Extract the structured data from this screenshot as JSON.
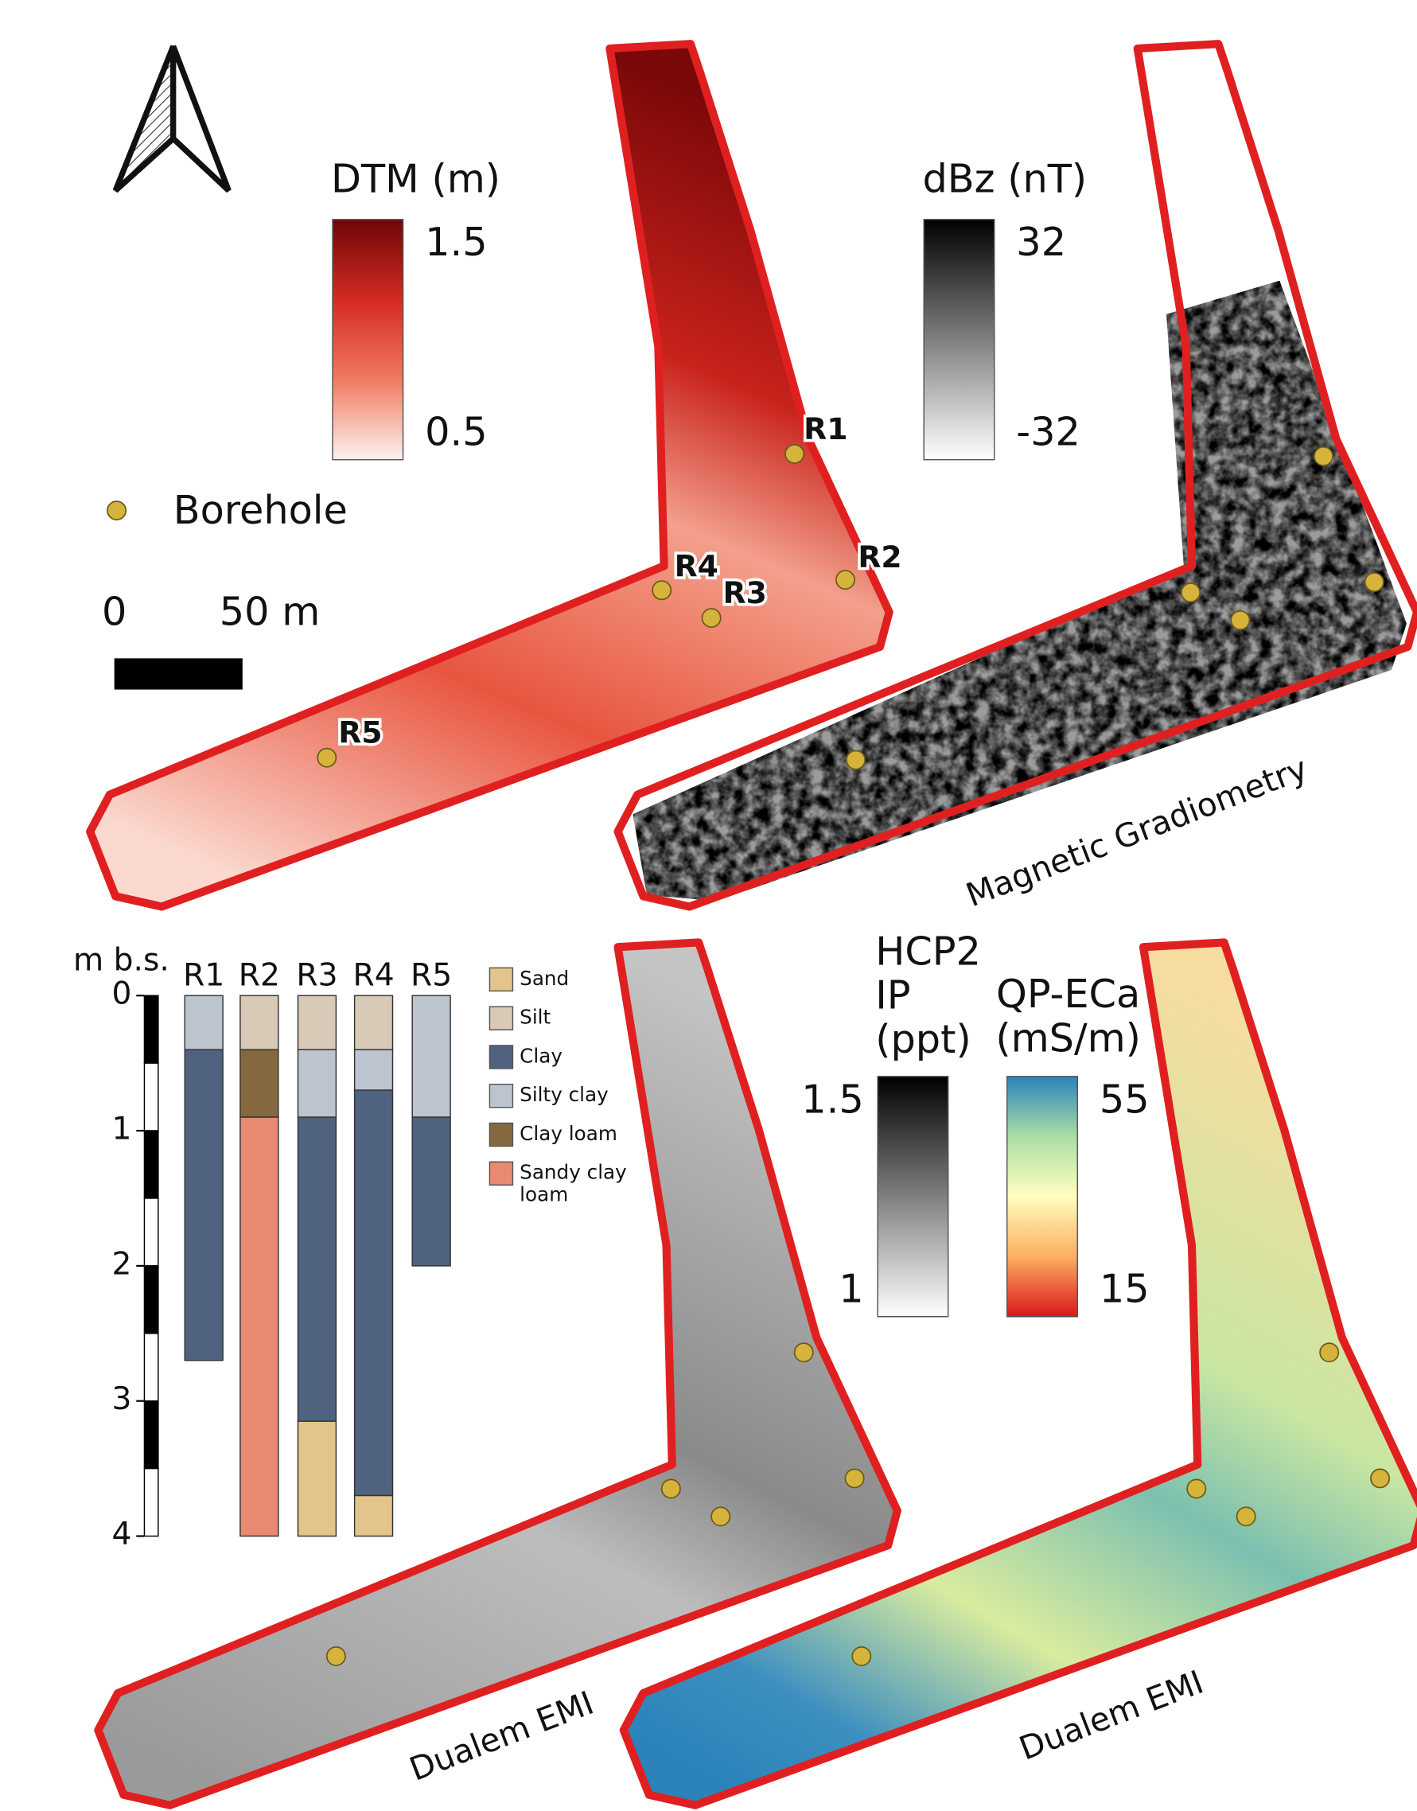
{
  "legend": {
    "borehole": "Borehole",
    "scale_bar": {
      "ticks": [
        0,
        {
          "value": 50,
          "label": "50 m"
        }
      ]
    }
  },
  "colorbars": [
    {
      "title": [
        "DTM (m)"
      ],
      "max": 1.5,
      "min": 0.5,
      "colors": [
        "#fdf2ee",
        "#f07a62",
        "#d42a22",
        "#6e0707"
      ]
    },
    {
      "title": [
        "dBz (nT)"
      ],
      "max": 32,
      "min": -32,
      "colors": [
        "#ffffff",
        "#000000"
      ]
    },
    {
      "title": [
        "HCP2",
        "IP",
        "(ppt)"
      ],
      "max": 1.5,
      "min": 1,
      "colors": [
        "#ffffff",
        "#000000"
      ]
    },
    {
      "title": [
        "QP-ECa",
        "(mS/m)"
      ],
      "max": 55,
      "min": 15,
      "colors": [
        "#d7191c",
        "#fdae61",
        "#ffffbf",
        "#abdda4",
        "#2b83ba"
      ]
    }
  ],
  "boreholes": [
    "R1",
    "R2",
    "R3",
    "R4",
    "R5"
  ],
  "maps": [
    {
      "caption": "Magnetic Gradiometry"
    },
    {
      "caption": "Dualem EMI"
    },
    {
      "caption": "Dualem EMI"
    }
  ],
  "log": {
    "ylabel": "m b.s.",
    "ylim": [
      0,
      4
    ],
    "yticks": [
      0,
      1,
      2,
      3,
      4
    ],
    "classes": [
      {
        "name": [
          "Sand"
        ],
        "color": "#e3c48a"
      },
      {
        "name": [
          "Silt"
        ],
        "color": "#d8cab7"
      },
      {
        "name": [
          "Clay"
        ],
        "color": "#4f6380"
      },
      {
        "name": [
          "Silty clay"
        ],
        "color": "#bcc4cf"
      },
      {
        "name": [
          "Clay loam"
        ],
        "color": "#85683f"
      },
      {
        "name": [
          "Sandy clay",
          "loam"
        ],
        "color": "#e88a72"
      }
    ],
    "columns": [
      {
        "layers": [
          {
            "class": 3,
            "thickness": 0.4
          },
          {
            "class": 2,
            "thickness": 2.3
          }
        ]
      },
      {
        "layers": [
          {
            "class": 1,
            "thickness": 0.4
          },
          {
            "class": 4,
            "thickness": 0.5
          },
          {
            "class": 5,
            "thickness": 3.1
          }
        ]
      },
      {
        "layers": [
          {
            "class": 1,
            "thickness": 0.4
          },
          {
            "class": 3,
            "thickness": 0.5
          },
          {
            "class": 2,
            "thickness": 2.25
          },
          {
            "class": 0,
            "thickness": 0.85
          }
        ]
      },
      {
        "layers": [
          {
            "class": 1,
            "thickness": 0.4
          },
          {
            "class": 3,
            "thickness": 0.3
          },
          {
            "class": 2,
            "thickness": 3.0
          },
          {
            "class": 0,
            "thickness": 0.3
          }
        ]
      },
      {
        "layers": [
          {
            "class": 3,
            "thickness": 0.9
          },
          {
            "class": 2,
            "thickness": 1.1
          }
        ]
      }
    ]
  }
}
